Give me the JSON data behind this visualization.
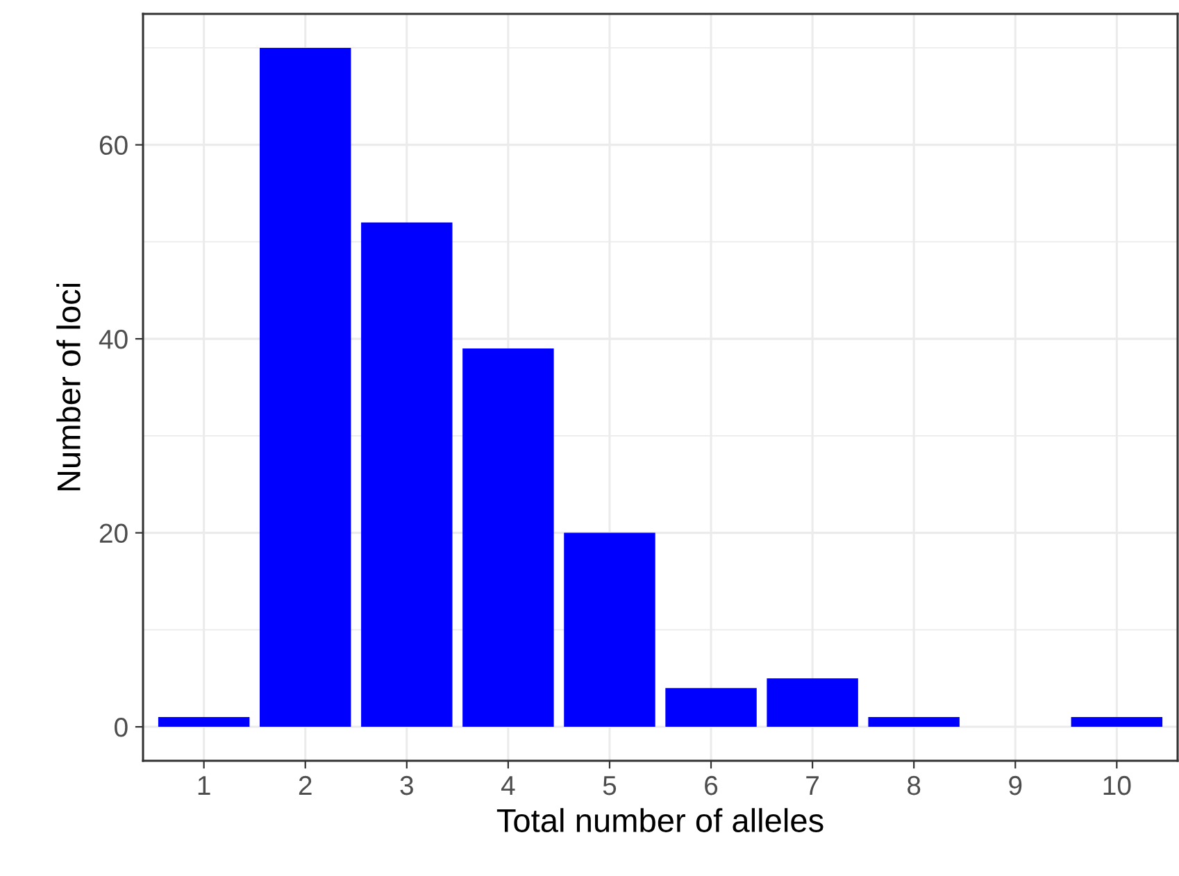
{
  "chart_data": {
    "type": "bar",
    "xlabel": "Total number of alleles",
    "ylabel": "Number of loci",
    "categories": [
      "1",
      "2",
      "3",
      "4",
      "5",
      "6",
      "7",
      "8",
      "9",
      "10"
    ],
    "values": [
      1,
      70,
      52,
      39,
      20,
      4,
      5,
      1,
      0,
      1
    ],
    "color": "#0000ff",
    "ylim": [
      -3.5,
      73.5
    ],
    "yticks": [
      0,
      20,
      40,
      60
    ],
    "grid": true
  }
}
